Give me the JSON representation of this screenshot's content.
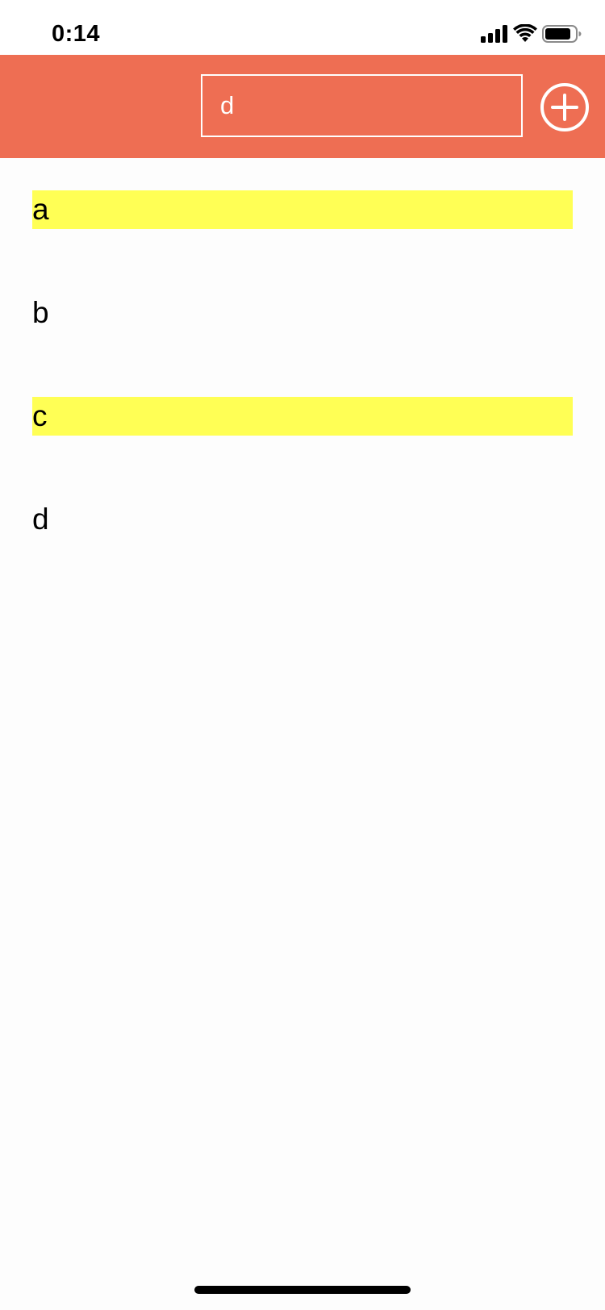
{
  "status_bar": {
    "time": "0:14",
    "icons": [
      "cellular-signal-icon",
      "wifi-icon",
      "battery-icon"
    ]
  },
  "header": {
    "background_color": "#ee6e53",
    "search": {
      "value": "d",
      "placeholder": ""
    },
    "add_icon": "plus-circle-icon"
  },
  "list": {
    "highlight_color": "#ffff55",
    "items": [
      {
        "label": "a",
        "highlighted": true
      },
      {
        "label": "b",
        "highlighted": false
      },
      {
        "label": "c",
        "highlighted": true
      },
      {
        "label": "d",
        "highlighted": false
      }
    ]
  }
}
